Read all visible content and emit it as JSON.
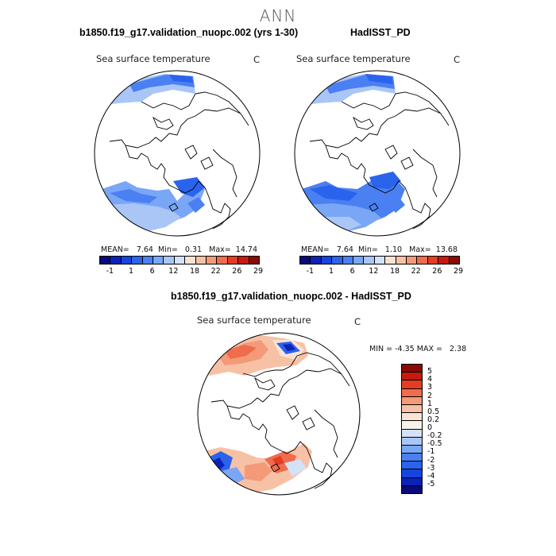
{
  "main_title": "ANN",
  "panels": [
    {
      "title": "b1850.f19_g17.validation_nuopc.002 (yrs 1-30)",
      "variable": "Sea surface temperature",
      "unit": "C",
      "stats": {
        "mean_label": "MEAN=",
        "mean": "7.64",
        "min_label": "Min=",
        "min": "0.31",
        "max_label": "Max=",
        "max": "14.74"
      }
    },
    {
      "title": "HadISST_PD",
      "variable": "Sea surface temperature",
      "unit": "C",
      "stats": {
        "mean_label": "MEAN=",
        "mean": "7.64",
        "min_label": "Min=",
        "min": "1.10",
        "max_label": "Max=",
        "max": "13.68"
      }
    }
  ],
  "diff_panel": {
    "title": "b1850.f19_g17.validation_nuopc.002 - HadISST_PD",
    "variable": "Sea surface temperature",
    "unit": "C",
    "min_label": "MIN =",
    "min": "-4.35",
    "max_label": "MAX =",
    "max": "2.38"
  },
  "colorbar_top": {
    "colors": [
      "#0a0a7a",
      "#0b22b8",
      "#1545dd",
      "#2a63ec",
      "#4a80f2",
      "#7aa6f6",
      "#a9c6f7",
      "#d3e2f7",
      "#fbe3d4",
      "#f7c1a6",
      "#f49a78",
      "#ef6c4d",
      "#e43d22",
      "#c71a0c",
      "#8a0a06"
    ],
    "labels": [
      "-1",
      "1",
      "6",
      "12",
      "18",
      "22",
      "26",
      "29"
    ]
  },
  "colorbar_diff": {
    "colors": [
      "#8a0a06",
      "#c71a0c",
      "#e43d22",
      "#ef6c4d",
      "#f49a78",
      "#f7c1a6",
      "#fbe3d4",
      "#f8f3ea",
      "#d3e2f7",
      "#a9c6f7",
      "#7aa6f6",
      "#4a80f2",
      "#2a63ec",
      "#1545dd",
      "#0b22b8",
      "#0a0a7a"
    ],
    "labels": [
      "5",
      "4",
      "3",
      "2",
      "1",
      "0.5",
      "0.2",
      "0",
      "-0.2",
      "-0.5",
      "-1",
      "-2",
      "-3",
      "-4",
      "-5"
    ]
  }
}
